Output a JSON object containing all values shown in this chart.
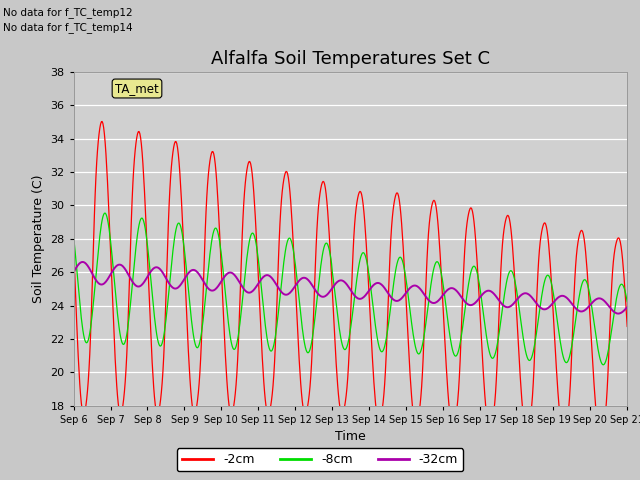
{
  "title": "Alfalfa Soil Temperatures Set C",
  "xlabel": "Time",
  "ylabel": "Soil Temperature (C)",
  "no_data_text": [
    "No data for f_TC_temp12",
    "No data for f_TC_temp14"
  ],
  "ta_met_label": "TA_met",
  "ylim": [
    18,
    38
  ],
  "x_tick_labels": [
    "Sep 6",
    "Sep 7",
    "Sep 8",
    "Sep 9",
    "Sep 9",
    "Sep 10",
    "Sep 11",
    "Sep 12",
    "Sep 13",
    "Sep 14",
    "Sep 15",
    "Sep 16",
    "Sep 17",
    "Sep 18",
    "Sep 19",
    "Sep 20",
    "Sep 21"
  ],
  "legend_labels": [
    "-2cm",
    "-8cm",
    "-32cm"
  ],
  "legend_colors": [
    "#ff0000",
    "#00dd00",
    "#aa00aa"
  ],
  "line_colors": [
    "#ff0000",
    "#00dd00",
    "#aa00aa"
  ],
  "bg_color": "#c8c8c8",
  "axes_bg": "#d0d0d0",
  "grid_color": "#ffffff",
  "title_fontsize": 13,
  "axis_label_fontsize": 9,
  "tick_fontsize": 8
}
